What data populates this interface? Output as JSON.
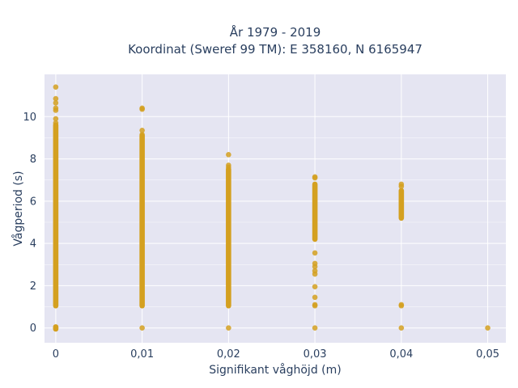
{
  "chart_data": {
    "type": "scatter",
    "title_line1": "År 1979 - 2019",
    "title_line2": "Koordinat (Sweref 99 TM): E 358160, N 6165947",
    "xlabel": "Signifikant våghöjd (m)",
    "ylabel": "Vågperiod (s)",
    "x_ticks": [
      "0",
      "0,01",
      "0,02",
      "0,03",
      "0,04",
      "0,05"
    ],
    "y_ticks": [
      "0",
      "2",
      "4",
      "6",
      "8",
      "10"
    ],
    "xlim": [
      -0.0013,
      0.0521
    ],
    "ylim": [
      -0.7,
      12.0
    ],
    "grid": true,
    "marker_color": "#d4a020",
    "plot_bg": "#e5e5f2",
    "grid_color": "#ffffff",
    "series": [
      {
        "points": [
          {
            "x": 0,
            "y": 0
          },
          {
            "x": 0,
            "y": 11.4
          },
          {
            "x": 0,
            "y": 10.85
          },
          {
            "x": 0,
            "y": 10.65
          },
          {
            "x": 0,
            "y": 10.4
          },
          {
            "x": 0,
            "y": 10.3
          },
          {
            "x": 0,
            "y": 9.9
          },
          {
            "x": 0,
            "y": 9.7
          },
          {
            "x": 0.01,
            "y": 0
          },
          {
            "x": 0.01,
            "y": 10.4
          },
          {
            "x": 0.01,
            "y": 10.35
          },
          {
            "x": 0.01,
            "y": 9.35
          },
          {
            "x": 0.01,
            "y": 9.15
          },
          {
            "x": 0.02,
            "y": 0
          },
          {
            "x": 0.02,
            "y": 8.2
          },
          {
            "x": 0.02,
            "y": 7.7
          },
          {
            "x": 0.02,
            "y": 7.6
          },
          {
            "x": 0.03,
            "y": 0
          },
          {
            "x": 0.03,
            "y": 1.05
          },
          {
            "x": 0.03,
            "y": 1.1
          },
          {
            "x": 0.03,
            "y": 1.45
          },
          {
            "x": 0.03,
            "y": 1.95
          },
          {
            "x": 0.03,
            "y": 2.55
          },
          {
            "x": 0.03,
            "y": 2.7
          },
          {
            "x": 0.03,
            "y": 2.9
          },
          {
            "x": 0.03,
            "y": 3.05
          },
          {
            "x": 0.03,
            "y": 3.55
          },
          {
            "x": 0.03,
            "y": 7.15
          },
          {
            "x": 0.03,
            "y": 7.1
          },
          {
            "x": 0.04,
            "y": 0
          },
          {
            "x": 0.04,
            "y": 1.05
          },
          {
            "x": 0.04,
            "y": 1.1
          },
          {
            "x": 0.04,
            "y": 6.8
          },
          {
            "x": 0.04,
            "y": 6.7
          },
          {
            "x": 0.05,
            "y": 0
          }
        ],
        "ranges": [
          {
            "x": 0,
            "y_min": 1.05,
            "y_max": 9.6
          },
          {
            "x": 0,
            "y_min": -0.05,
            "y_max": 0.05
          },
          {
            "x": 0.01,
            "y_min": 1.05,
            "y_max": 9.1
          },
          {
            "x": 0.02,
            "y_min": 1.05,
            "y_max": 7.5
          },
          {
            "x": 0.03,
            "y_min": 4.2,
            "y_max": 6.8
          },
          {
            "x": 0.04,
            "y_min": 5.2,
            "y_max": 6.5
          }
        ]
      }
    ]
  }
}
